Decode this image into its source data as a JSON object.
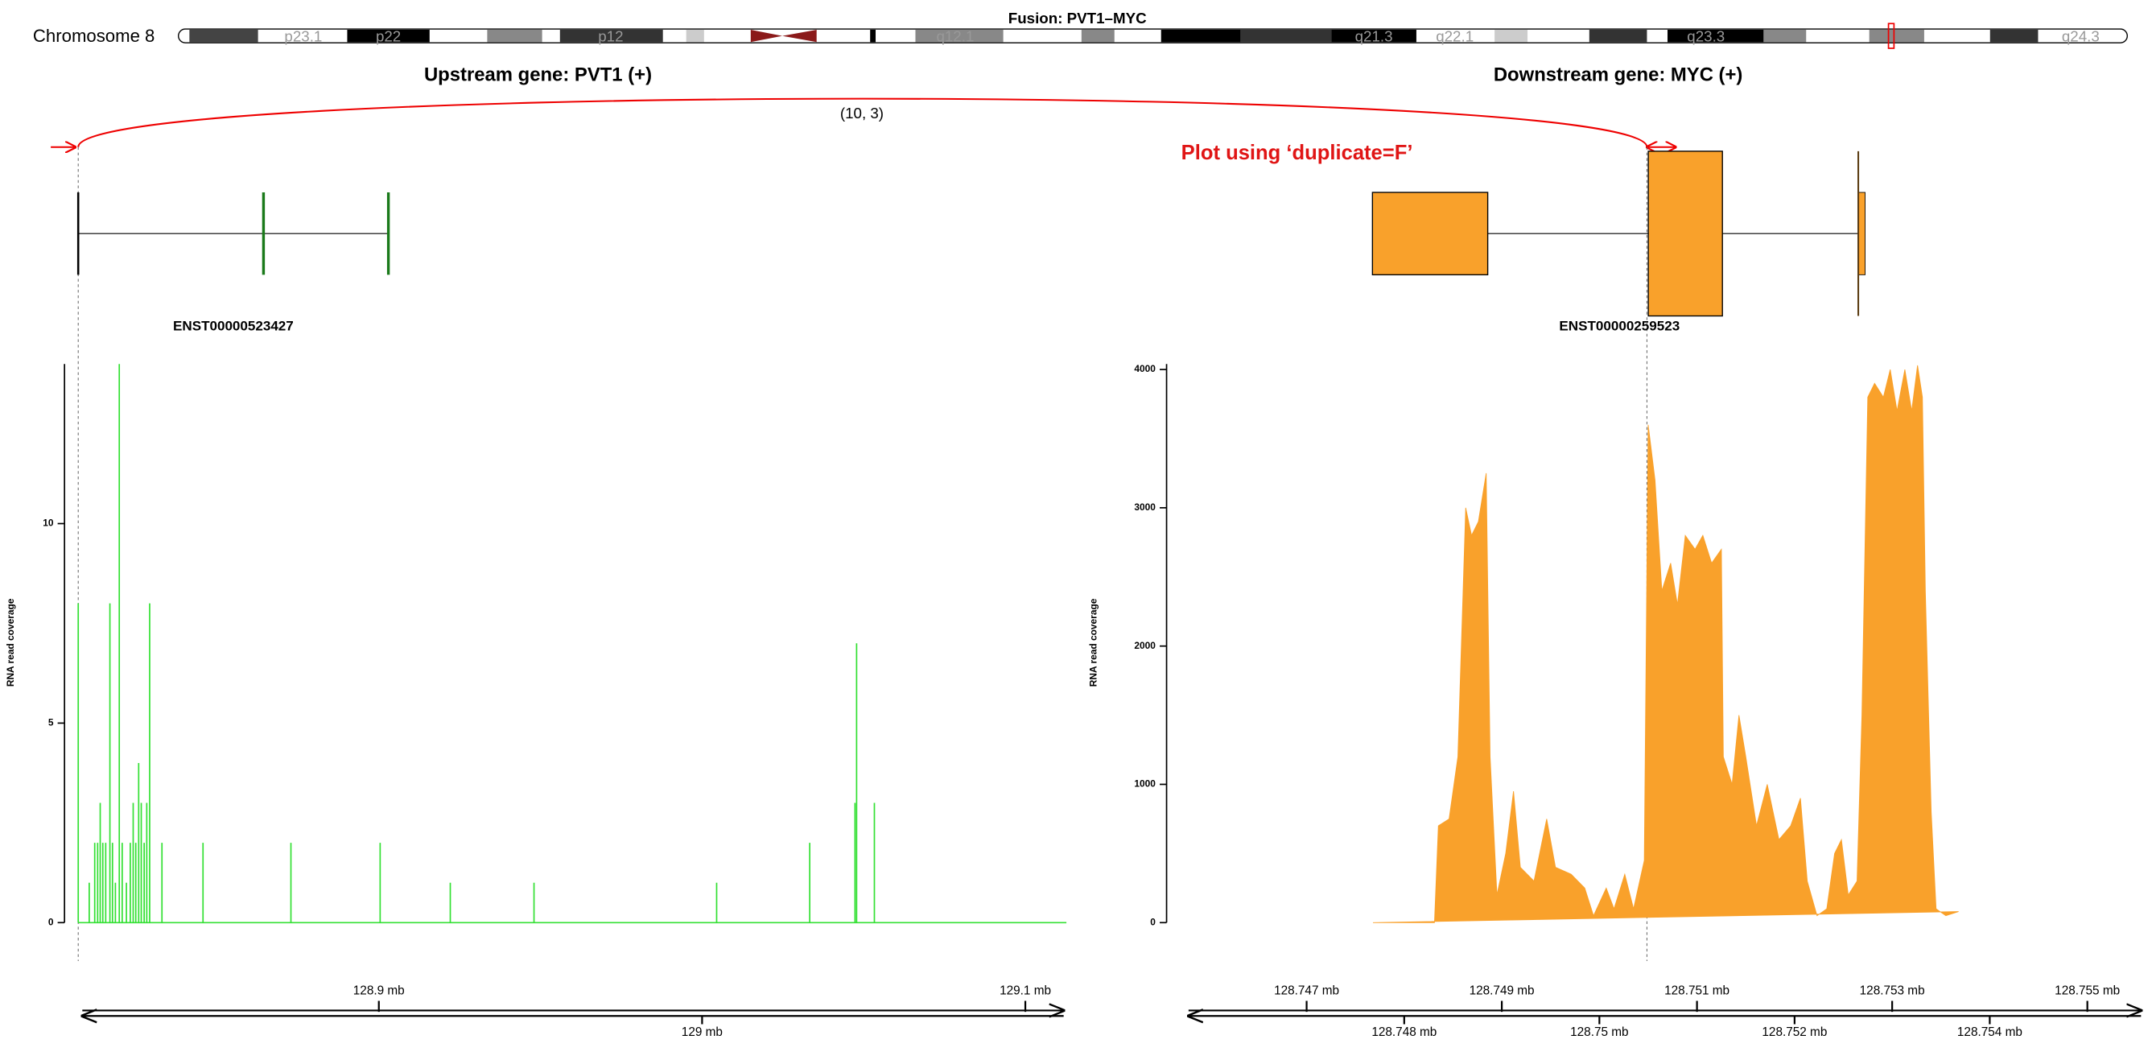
{
  "header": {
    "chromosome": "Chromosome 8",
    "fusion": "Fusion: PVT1–MYC",
    "bands": [
      "p23.1",
      "p22",
      "p12",
      "q12.1",
      "q21.3",
      "q22.1",
      "q23.3",
      "q24.3"
    ]
  },
  "upstream": "Upstream gene: PVT1 (+)",
  "downstream": "Downstream gene: MYC (+)",
  "arc_label": "(10, 3)",
  "annotation": "Plot using ‘duplicate=F’",
  "transcripts": [
    "ENST00000523427",
    "ENST00000259523"
  ],
  "chart_data": [
    {
      "type": "bar",
      "y_label": "RNA read coverage",
      "color": "#33e033",
      "x": [
        128.807,
        128.8104,
        128.8121,
        128.813,
        128.8138,
        128.8146,
        128.8155,
        128.8168,
        128.8176,
        128.8185,
        128.8197,
        128.8206,
        128.8219,
        128.8231,
        128.824,
        128.8248,
        128.8257,
        128.8265,
        128.8274,
        128.8282,
        128.8291,
        128.8329,
        128.8456,
        128.8728,
        128.9004,
        128.9221,
        128.948,
        129.0045,
        129.0333,
        129.0473,
        129.0478,
        129.0533
      ],
      "values": [
        8,
        1,
        2,
        2,
        3,
        2,
        2,
        8,
        2,
        1,
        14,
        2,
        1,
        2,
        3,
        2,
        4,
        3,
        2,
        3,
        8,
        2,
        2,
        2,
        2,
        1,
        1,
        1,
        2,
        3,
        7,
        3
      ],
      "xlim": [
        128.807,
        129.1127
      ],
      "xticks": [
        {
          "value": 128.9,
          "label": "128.9 mb"
        },
        {
          "value": 129,
          "label": "129 mb"
        },
        {
          "value": 129.1,
          "label": "129.1 mb"
        }
      ],
      "ylim": [
        0,
        14
      ],
      "yticks": [
        0,
        5,
        10
      ]
    },
    {
      "type": "area",
      "y_label": "RNA read coverage",
      "color": "#f9a12b",
      "x": [
        128.74768,
        128.74831,
        128.74835,
        128.74846,
        128.74855,
        128.74863,
        128.74869,
        128.74876,
        128.74884,
        128.74888,
        128.74895,
        128.74904,
        128.74912,
        128.74919,
        128.74933,
        128.74946,
        128.74955,
        128.74971,
        128.74985,
        128.74994,
        128.75007,
        128.75015,
        128.75026,
        128.75035,
        128.75046,
        128.7505,
        128.75057,
        128.75064,
        128.75073,
        128.7508,
        128.75088,
        128.75098,
        128.75106,
        128.75115,
        128.75125,
        128.75127,
        128.75136,
        128.75143,
        128.7515,
        128.75161,
        128.75172,
        128.75184,
        128.75196,
        128.75206,
        128.75213,
        128.75223,
        128.75233,
        128.75241,
        128.75248,
        128.75255,
        128.75264,
        128.75269,
        128.75275,
        128.75282,
        128.75291,
        128.75298,
        128.75305,
        128.75313,
        128.7532,
        128.75326,
        128.75331,
        128.75334,
        128.7534,
        128.75345,
        128.75355,
        128.75368
      ],
      "values": [
        0,
        0,
        700,
        750,
        1200,
        3000,
        2800,
        2900,
        3250,
        1200,
        200,
        500,
        950,
        400,
        300,
        750,
        400,
        350,
        250,
        50,
        250,
        100,
        350,
        100,
        450,
        3600,
        3200,
        2400,
        2600,
        2300,
        2800,
        2700,
        2800,
        2600,
        2700,
        1200,
        1000,
        1500,
        1200,
        700,
        1000,
        600,
        700,
        900,
        300,
        50,
        100,
        500,
        600,
        200,
        300,
        1500,
        3800,
        3900,
        3800,
        4000,
        3700,
        4000,
        3700,
        4030,
        3800,
        2400,
        800,
        100,
        50,
        80
      ],
      "xlim": [
        128.74579,
        128.75555
      ],
      "xticks": [
        {
          "value": 128.747,
          "label": "128.747 mb"
        },
        {
          "value": 128.748,
          "label": "128.748 mb"
        },
        {
          "value": 128.749,
          "label": "128.749 mb"
        },
        {
          "value": 128.75,
          "label": "128.75 mb"
        },
        {
          "value": 128.751,
          "label": "128.751 mb"
        },
        {
          "value": 128.752,
          "label": "128.752 mb"
        },
        {
          "value": 128.753,
          "label": "128.753 mb"
        },
        {
          "value": 128.754,
          "label": "128.754 mb"
        },
        {
          "value": 128.755,
          "label": "128.755 mb"
        }
      ],
      "ylim": [
        0,
        4040
      ],
      "yticks": [
        0,
        1000,
        2000,
        3000,
        4000
      ]
    }
  ]
}
